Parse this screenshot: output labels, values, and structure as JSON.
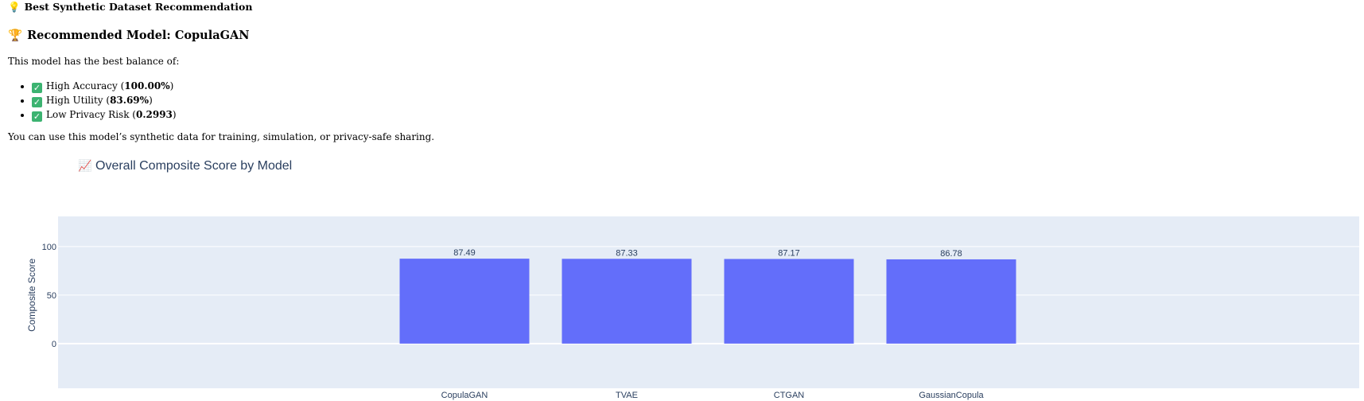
{
  "section_title": {
    "icon": "💡",
    "text": "Best Synthetic Dataset Recommendation"
  },
  "recommendation": {
    "icon": "🏆",
    "heading": "Recommended Model: CopulaGAN",
    "intro": "This model has the best balance of:",
    "features": [
      {
        "label": "High Accuracy",
        "value": "100.00%"
      },
      {
        "label": "High Utility",
        "value": "83.69%"
      },
      {
        "label": "Low Privacy Risk",
        "value": "0.2993"
      }
    ],
    "outro": "You can use this model’s synthetic data for training, simulation, or privacy-safe sharing."
  },
  "chart_data": {
    "type": "bar",
    "title_icon": "📈",
    "title": "Overall Composite Score by Model",
    "xlabel": "",
    "ylabel": "Composite Score",
    "categories": [
      "CopulaGAN",
      "TVAE",
      "CTGAN",
      "GaussianCopula"
    ],
    "values": [
      87.49,
      87.33,
      87.17,
      86.78
    ],
    "value_labels": [
      "87.49",
      "87.33",
      "87.17",
      "86.78"
    ],
    "yticks": [
      0,
      50,
      100
    ],
    "ylim": [
      -46,
      131
    ],
    "grid": true,
    "bar_color": "#636efa",
    "plot_bg": "#e5ecf6"
  }
}
